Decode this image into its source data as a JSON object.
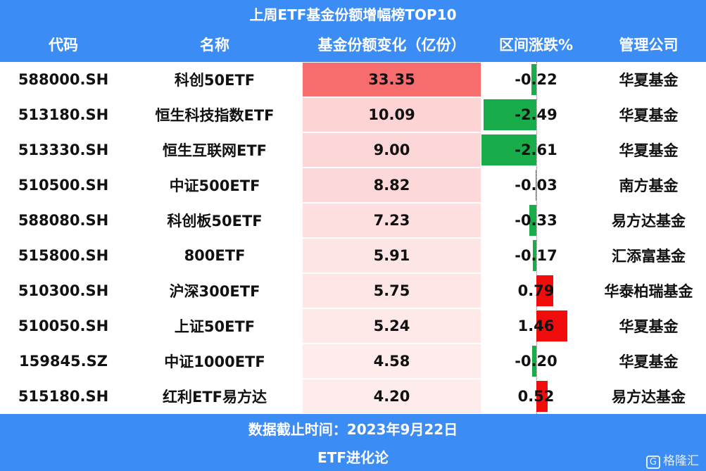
{
  "title": "上周ETF基金份额增幅榜TOP10",
  "table": {
    "columns": [
      "代码",
      "名称",
      "基金份额变化（亿份）",
      "区间涨跌%",
      "管理公司"
    ],
    "rows": [
      [
        "588000.SH",
        "科创50ETF",
        "33.35",
        "-0.22",
        "华夏基金"
      ],
      [
        "513180.SH",
        "恒生科技指数ETF",
        "10.09",
        "-2.49",
        "华夏基金"
      ],
      [
        "513330.SH",
        "恒生互联网ETF",
        "9.00",
        "-2.61",
        "华夏基金"
      ],
      [
        "510500.SH",
        "中证500ETF",
        "8.82",
        "-0.03",
        "南方基金"
      ],
      [
        "588080.SH",
        "科创板50ETF",
        "7.23",
        "-0.33",
        "易方达基金"
      ],
      [
        "515800.SH",
        "800ETF",
        "5.91",
        "-0.17",
        "汇添富基金"
      ],
      [
        "510300.SH",
        "沪深300ETF",
        "5.75",
        "0.79",
        "华泰柏瑞基金"
      ],
      [
        "510050.SH",
        "上证50ETF",
        "5.24",
        "1.46",
        "华夏基金"
      ],
      [
        "159845.SZ",
        "中证1000ETF",
        "4.58",
        "-0.20",
        "华夏基金"
      ],
      [
        "515180.SH",
        "红利ETF易方达",
        "4.20",
        "0.52",
        "易方达基金"
      ]
    ]
  },
  "footer": {
    "date": "数据截止时间：2023年9月22日",
    "source": "ETF进化论"
  },
  "watermark": "格隆汇"
}
